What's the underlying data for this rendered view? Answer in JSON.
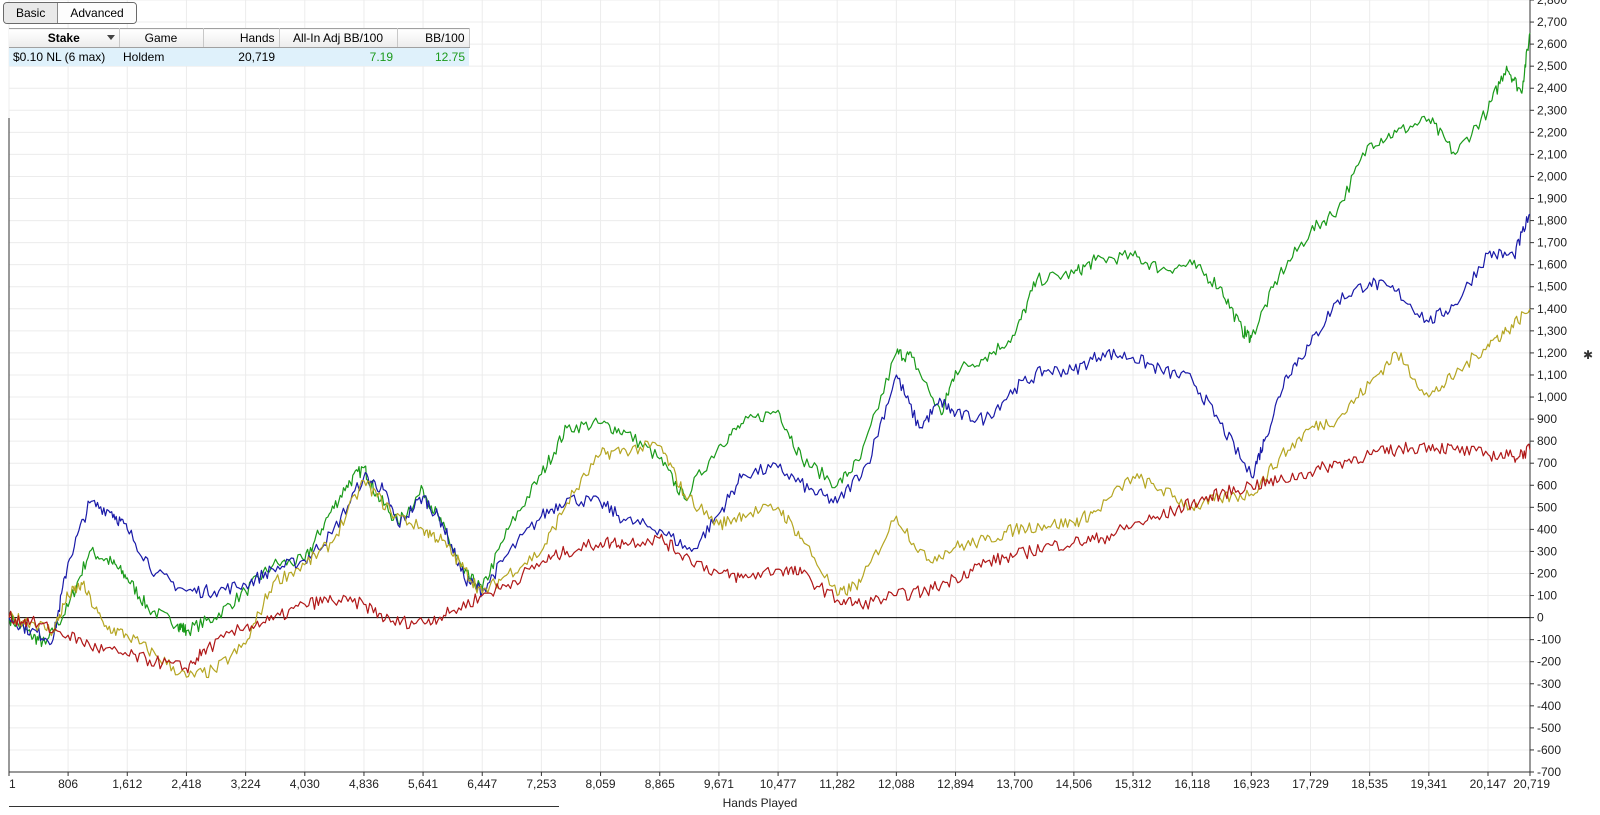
{
  "toolbar": {
    "basic_label": "Basic",
    "advanced_label": "Advanced"
  },
  "stats_table": {
    "headers": [
      "Stake",
      "Game",
      "Hands",
      "All-In Adj BB/100",
      "BB/100"
    ],
    "row": {
      "stake": "$0.10 NL (6 max)",
      "game": "Holdem",
      "hands": "20,719",
      "allin_adj_bb100": "7.19",
      "bb100": "12.75"
    }
  },
  "colors": {
    "green": "#1a9a1a",
    "blue": "#1a1aa8",
    "yellow": "#b5a623",
    "red": "#b01818",
    "zero_line": "#000000",
    "grid": "#ececec"
  },
  "chart_data": {
    "type": "line",
    "xlabel": "Hands Played",
    "ylabel": "",
    "x_ticks": [
      "1",
      "806",
      "1,612",
      "2,418",
      "3,224",
      "4,030",
      "4,836",
      "5,641",
      "6,447",
      "7,253",
      "8,059",
      "8,865",
      "9,671",
      "10,477",
      "11,282",
      "12,088",
      "12,894",
      "13,700",
      "14,506",
      "15,312",
      "16,118",
      "16,923",
      "17,729",
      "18,535",
      "19,341",
      "20,147",
      "20,719"
    ],
    "x_tick_values": [
      1,
      806,
      1612,
      2418,
      3224,
      4030,
      4836,
      5641,
      6447,
      7253,
      8059,
      8865,
      9671,
      10477,
      11282,
      12088,
      12894,
      13700,
      14506,
      15312,
      16118,
      16923,
      17729,
      18535,
      19341,
      20147,
      20719
    ],
    "xlim": [
      1,
      20719
    ],
    "ylim": [
      -700,
      2800
    ],
    "y_ticks": [
      2800,
      2700,
      2600,
      2500,
      2400,
      2300,
      2200,
      2100,
      2000,
      1900,
      1800,
      1700,
      1600,
      1500,
      1400,
      1300,
      1200,
      1100,
      1000,
      900,
      800,
      700,
      600,
      500,
      400,
      300,
      200,
      100,
      0,
      -100,
      -200,
      -300,
      -400,
      -500,
      -600,
      -700
    ],
    "y_tick_labels": [
      "2,800",
      "2,700",
      "2,600",
      "2,500",
      "2,400",
      "2,300",
      "2,200",
      "2,100",
      "2,000",
      "1,900",
      "1,800",
      "1,700",
      "1,600",
      "1,500",
      "1,400",
      "1,300",
      "1,200",
      "1,100",
      "1,000",
      "900",
      "800",
      "700",
      "600",
      "500",
      "400",
      "300",
      "200",
      "100",
      "0",
      "-100",
      "-200",
      "-300",
      "-400",
      "-500",
      "-600",
      "-700"
    ],
    "grid": true,
    "series": [
      {
        "color": "#1a9a1a",
        "x": [
          1,
          300,
          500,
          806,
          1100,
          1400,
          1612,
          1900,
          2300,
          2418,
          2800,
          3224,
          3600,
          4030,
          4300,
          4600,
          4836,
          5000,
          5300,
          5641,
          5900,
          6200,
          6447,
          6800,
          7253,
          7600,
          8059,
          8400,
          8865,
          9200,
          9671,
          10000,
          10477,
          10800,
          11282,
          11600,
          12088,
          12300,
          12700,
          12894,
          13300,
          13700,
          14000,
          14506,
          14800,
          15312,
          15700,
          16118,
          16500,
          16800,
          16923,
          17300,
          17729,
          18100,
          18535,
          18900,
          19341,
          19700,
          20147,
          20400,
          20600,
          20719
        ],
        "y": [
          0,
          -80,
          -120,
          50,
          300,
          250,
          180,
          40,
          -30,
          -60,
          0,
          120,
          240,
          260,
          430,
          600,
          680,
          560,
          430,
          580,
          420,
          200,
          130,
          400,
          650,
          860,
          880,
          840,
          720,
          540,
          780,
          880,
          940,
          720,
          600,
          720,
          1200,
          1180,
          920,
          1120,
          1180,
          1280,
          1530,
          1560,
          1620,
          1640,
          1580,
          1600,
          1500,
          1300,
          1270,
          1550,
          1750,
          1850,
          2150,
          2200,
          2260,
          2100,
          2300,
          2500,
          2380,
          2650
        ]
      },
      {
        "color": "#1a1aa8",
        "x": [
          1,
          300,
          600,
          806,
          1100,
          1400,
          1612,
          2000,
          2418,
          2800,
          3224,
          3600,
          4030,
          4400,
          4836,
          5100,
          5300,
          5641,
          5900,
          6200,
          6447,
          6800,
          7253,
          7600,
          8059,
          8400,
          8865,
          9300,
          9671,
          10000,
          10477,
          10900,
          11282,
          11700,
          12088,
          12400,
          12700,
          12894,
          13300,
          13700,
          14100,
          14506,
          14900,
          15312,
          15700,
          16118,
          16500,
          16923,
          17100,
          17400,
          17729,
          18100,
          18535,
          18900,
          19341,
          19700,
          20147,
          20500,
          20719
        ],
        "y": [
          0,
          -60,
          -100,
          250,
          520,
          480,
          400,
          200,
          120,
          120,
          150,
          220,
          260,
          380,
          640,
          580,
          420,
          550,
          430,
          180,
          120,
          290,
          460,
          540,
          520,
          440,
          400,
          300,
          470,
          650,
          680,
          580,
          520,
          700,
          1100,
          860,
          980,
          920,
          900,
          1040,
          1120,
          1120,
          1200,
          1180,
          1120,
          1080,
          880,
          640,
          800,
          1100,
          1240,
          1440,
          1520,
          1480,
          1340,
          1420,
          1650,
          1640,
          1830
        ]
      },
      {
        "color": "#b5a623",
        "x": [
          1,
          300,
          600,
          806,
          1000,
          1300,
          1612,
          2000,
          2418,
          2800,
          3224,
          3600,
          4030,
          4400,
          4836,
          5200,
          5641,
          5900,
          6200,
          6447,
          6800,
          7253,
          7600,
          8059,
          8400,
          8865,
          9200,
          9671,
          10000,
          10477,
          10800,
          11282,
          11600,
          12088,
          12500,
          12894,
          13300,
          13700,
          14100,
          14506,
          14800,
          15312,
          15700,
          16118,
          16500,
          16923,
          17300,
          17729,
          18100,
          18535,
          18900,
          19341,
          19700,
          20147,
          20400,
          20719
        ],
        "y": [
          0,
          -20,
          -60,
          100,
          150,
          -40,
          -80,
          -170,
          -270,
          -240,
          -120,
          160,
          240,
          340,
          620,
          480,
          400,
          350,
          220,
          110,
          200,
          300,
          520,
          740,
          760,
          780,
          560,
          420,
          470,
          500,
          360,
          100,
          160,
          460,
          260,
          320,
          350,
          400,
          420,
          430,
          480,
          640,
          580,
          500,
          540,
          560,
          720,
          860,
          900,
          1060,
          1200,
          1000,
          1100,
          1240,
          1300,
          1400
        ]
      },
      {
        "color": "#b01818",
        "x": [
          1,
          300,
          806,
          1200,
          1612,
          2000,
          2418,
          2700,
          3224,
          3600,
          4030,
          4400,
          4836,
          5200,
          5641,
          6000,
          6447,
          6800,
          7253,
          7600,
          8059,
          8400,
          8865,
          9200,
          9671,
          10000,
          10477,
          10800,
          11282,
          11600,
          12088,
          12500,
          12894,
          13300,
          13700,
          14100,
          14506,
          14900,
          15312,
          15700,
          16118,
          16500,
          16923,
          17300,
          17729,
          18100,
          18535,
          18900,
          19341,
          19700,
          20147,
          20500,
          20719
        ],
        "y": [
          0,
          -20,
          -80,
          -140,
          -170,
          -200,
          -230,
          -140,
          -40,
          -10,
          60,
          80,
          60,
          -20,
          -20,
          20,
          100,
          150,
          250,
          300,
          340,
          340,
          360,
          280,
          200,
          180,
          220,
          200,
          80,
          60,
          100,
          120,
          180,
          250,
          280,
          320,
          340,
          360,
          420,
          460,
          520,
          560,
          600,
          620,
          660,
          700,
          740,
          760,
          780,
          760,
          740,
          730,
          760
        ]
      }
    ]
  }
}
